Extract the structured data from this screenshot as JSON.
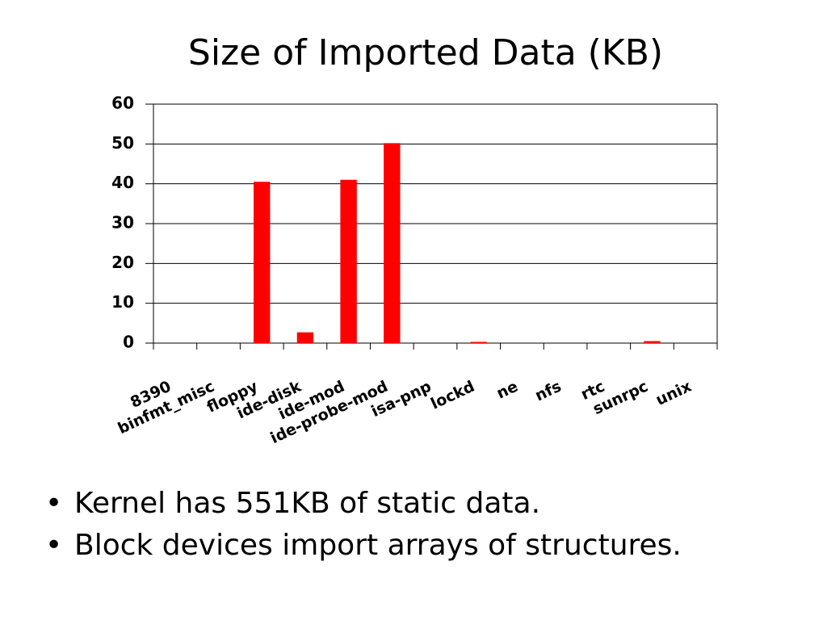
{
  "chart_data": {
    "type": "bar",
    "title": "Size of Imported Data (KB)",
    "categories": [
      "8390",
      "binfmt_misc",
      "floppy",
      "ide-disk",
      "ide-mod",
      "ide-probe-mod",
      "isa-pnp",
      "lockd",
      "ne",
      "nfs",
      "rtc",
      "sunrpc",
      "unix"
    ],
    "values": [
      0,
      0,
      40.5,
      2.7,
      41,
      50.2,
      0,
      0.3,
      0,
      0,
      0,
      0.5,
      0
    ],
    "color": "#ff0000",
    "ylim": [
      0,
      60
    ],
    "yticks": [
      0,
      10,
      20,
      30,
      40,
      50,
      60
    ],
    "grid": true
  },
  "bullets": [
    "Kernel has 551KB of static data.",
    "Block devices import arrays of structures."
  ]
}
